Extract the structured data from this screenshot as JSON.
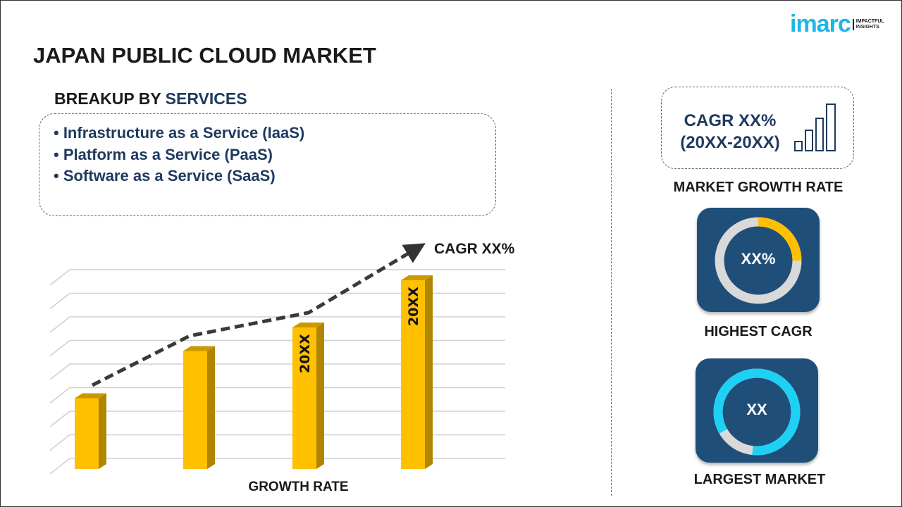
{
  "title": "JAPAN PUBLIC CLOUD MARKET",
  "logo": {
    "word": "imarc",
    "tagline1": "IMPACTFUL",
    "tagline2": "INSIGHTS"
  },
  "breakup": {
    "prefix": "BREAKUP BY",
    "accent": "SERVICES",
    "items": [
      "• Infrastructure as a Service (IaaS)",
      "• Platform as a Service (PaaS)",
      "• Software as a Service (SaaS)"
    ]
  },
  "growth": {
    "cagr_line1": "CAGR XX%",
    "cagr_line2": "(20XX-20XX)",
    "label": "MARKET GROWTH RATE"
  },
  "highest": {
    "value": "XX%",
    "label": "HIGHEST CAGR",
    "fill_fraction": 0.25
  },
  "largest": {
    "value": "XX",
    "label": "LARGEST MARKET",
    "fill_fraction": 0.85
  },
  "colors": {
    "bar": "#ffc000",
    "bar_side": "#b08600",
    "navy": "#1f4e79",
    "accent_cyan": "#1fd0f5",
    "donut_yellow": "#ffc000"
  },
  "chart_data": {
    "type": "bar",
    "categories": [
      "",
      "",
      "",
      ""
    ],
    "values": [
      3,
      5,
      6,
      8
    ],
    "bar_labels": [
      "",
      "",
      "20XX",
      "20XX"
    ],
    "trend": "dashed arrow",
    "annotation": "CAGR XX%",
    "xlabel": "GROWTH RATE",
    "ylim": [
      0,
      8.5
    ],
    "grid": true
  }
}
